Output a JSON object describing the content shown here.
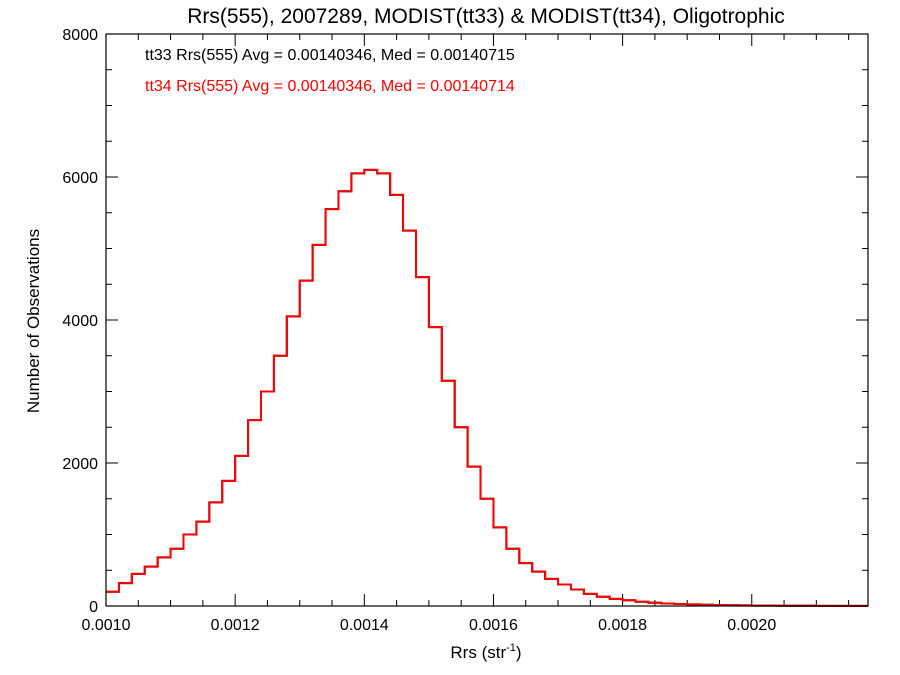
{
  "chart_data": {
    "type": "line",
    "step": true,
    "title": "Rrs(555), 2007289, MODIST(tt33) & MODIST(tt34), Oligotrophic",
    "xlabel": "Rrs (str",
    "xlabel_sup": "-1",
    "xlabel_end": ")",
    "ylabel": "Number of Observations",
    "xlim": [
      0.001,
      0.00218
    ],
    "ylim": [
      0,
      8000
    ],
    "x_ticks": [
      "0.0010",
      "0.0012",
      "0.0014",
      "0.0016",
      "0.0018",
      "0.0020"
    ],
    "x_tick_values": [
      0.001,
      0.0012,
      0.0014,
      0.0016,
      0.0018,
      0.002
    ],
    "y_ticks": [
      "0",
      "2000",
      "4000",
      "6000",
      "8000"
    ],
    "y_tick_values": [
      0,
      2000,
      4000,
      6000,
      8000
    ],
    "legend_placement": "top-left",
    "annotations": [
      {
        "text": "tt33 Rrs(555) Avg = 0.00140346, Med = 0.00140715",
        "color": "#000000"
      },
      {
        "text": "tt34 Rrs(555) Avg = 0.00140346, Med = 0.00140714",
        "color": "#ff0000"
      }
    ],
    "series": [
      {
        "name": "tt33",
        "color": "#000000",
        "x": [
          0.001,
          0.00102,
          0.00104,
          0.00106,
          0.00108,
          0.0011,
          0.00112,
          0.00114,
          0.00116,
          0.00118,
          0.0012,
          0.00122,
          0.00124,
          0.00126,
          0.00128,
          0.0013,
          0.00132,
          0.00134,
          0.00136,
          0.00138,
          0.0014,
          0.00142,
          0.00144,
          0.00146,
          0.00148,
          0.0015,
          0.00152,
          0.00154,
          0.00156,
          0.00158,
          0.0016,
          0.00162,
          0.00164,
          0.00166,
          0.00168,
          0.0017,
          0.00172,
          0.00174,
          0.00176,
          0.00178,
          0.0018,
          0.00182,
          0.00184,
          0.00186,
          0.00188,
          0.0019,
          0.00192,
          0.00194,
          0.00196,
          0.00198,
          0.002,
          0.00202,
          0.00204,
          0.00206,
          0.00208,
          0.0021,
          0.00212,
          0.00214,
          0.00216,
          0.00218
        ],
        "values": [
          200,
          320,
          450,
          550,
          680,
          800,
          1000,
          1180,
          1450,
          1750,
          2100,
          2600,
          3000,
          3500,
          4050,
          4550,
          5050,
          5550,
          5800,
          6050,
          6100,
          6050,
          5750,
          5250,
          4600,
          3900,
          3150,
          2500,
          1950,
          1500,
          1100,
          800,
          600,
          480,
          380,
          300,
          230,
          170,
          130,
          100,
          80,
          60,
          45,
          35,
          28,
          22,
          18,
          14,
          11,
          8,
          6,
          5,
          4,
          3,
          3,
          2,
          2,
          1,
          1,
          1
        ]
      },
      {
        "name": "tt34",
        "color": "#ff0000",
        "x": [
          0.001,
          0.00102,
          0.00104,
          0.00106,
          0.00108,
          0.0011,
          0.00112,
          0.00114,
          0.00116,
          0.00118,
          0.0012,
          0.00122,
          0.00124,
          0.00126,
          0.00128,
          0.0013,
          0.00132,
          0.00134,
          0.00136,
          0.00138,
          0.0014,
          0.00142,
          0.00144,
          0.00146,
          0.00148,
          0.0015,
          0.00152,
          0.00154,
          0.00156,
          0.00158,
          0.0016,
          0.00162,
          0.00164,
          0.00166,
          0.00168,
          0.0017,
          0.00172,
          0.00174,
          0.00176,
          0.00178,
          0.0018,
          0.00182,
          0.00184,
          0.00186,
          0.00188,
          0.0019,
          0.00192,
          0.00194,
          0.00196,
          0.00198,
          0.002,
          0.00202,
          0.00204,
          0.00206,
          0.00208,
          0.0021,
          0.00212,
          0.00214,
          0.00216,
          0.00218
        ],
        "values": [
          200,
          320,
          450,
          550,
          680,
          800,
          1000,
          1180,
          1450,
          1750,
          2100,
          2600,
          3000,
          3500,
          4050,
          4550,
          5050,
          5550,
          5800,
          6050,
          6100,
          6050,
          5750,
          5250,
          4600,
          3900,
          3150,
          2500,
          1950,
          1500,
          1100,
          800,
          600,
          480,
          380,
          300,
          230,
          170,
          130,
          100,
          80,
          60,
          45,
          35,
          28,
          22,
          18,
          14,
          11,
          8,
          6,
          5,
          4,
          3,
          3,
          2,
          2,
          1,
          1,
          1
        ]
      }
    ]
  }
}
